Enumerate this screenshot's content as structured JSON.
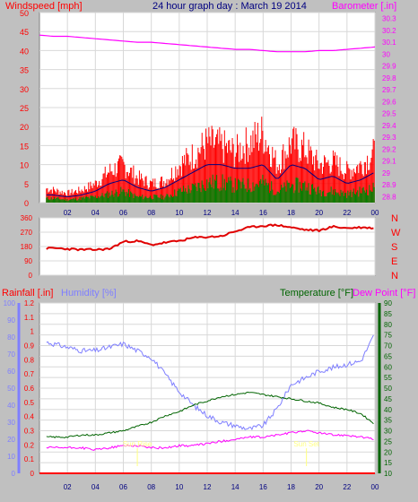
{
  "header": {
    "windspeed_label": "Windspeed [mph]",
    "title": "24 hour graph day : March 19 2014",
    "barometer_label": "Barometer [.in]"
  },
  "lower_header": {
    "rainfall_label": "Rainfall [.in]",
    "humidity_label": "Humidity [%]",
    "temperature_label": "Temperature [°F]",
    "dewpoint_label": "Dew Point [°F]"
  },
  "annotations": {
    "sunrise": "Sun Rise",
    "sunset": "Sun Set"
  },
  "colors": {
    "background": "#c0c0c0",
    "plot_bg": "#ffffff",
    "grid": "#d8d8d8",
    "wind": "#ff0000",
    "wind_avg": "#000080",
    "gust_fill": "#008000",
    "barometer": "#ff00ff",
    "direction": "#e00000",
    "humidity": "#7f7fff",
    "temperature": "#006400",
    "dewpoint": "#ff00ff",
    "rain": "#ff0000",
    "title": "#000080",
    "sun_marker": "#ffff80"
  },
  "chart_data": [
    {
      "type": "line",
      "name": "wind",
      "x_ticks": [
        "02",
        "04",
        "06",
        "08",
        "10",
        "12",
        "14",
        "16",
        "18",
        "20",
        "22",
        "00"
      ],
      "ylim_left": [
        0,
        50
      ],
      "left_ticks": [
        0,
        5,
        10,
        15,
        20,
        25,
        30,
        35,
        40,
        45,
        50
      ],
      "ylim_right": [
        28.75,
        30.35
      ],
      "right_ticks": [
        "28.8",
        "28.9",
        "29",
        "29.1",
        "29.2",
        "29.3",
        "29.4",
        "29.5",
        "29.6",
        "29.7",
        "29.8",
        "29.9",
        "30",
        "30.1",
        "30.2",
        "30.3"
      ],
      "hours": [
        0,
        1,
        2,
        3,
        4,
        5,
        6,
        7,
        8,
        9,
        10,
        11,
        12,
        13,
        14,
        15,
        16,
        17,
        18,
        19,
        20,
        21,
        22,
        23,
        24
      ],
      "gust_max": [
        5,
        4,
        3,
        4,
        6,
        10,
        12,
        8,
        6,
        7,
        12,
        15,
        19,
        18,
        16,
        19,
        22,
        12,
        19,
        17,
        12,
        13,
        10,
        12,
        16
      ],
      "wind_avg": [
        2,
        2,
        1.5,
        2,
        3,
        5,
        6,
        4,
        3,
        4,
        6,
        8,
        10,
        10,
        9,
        9,
        10,
        6,
        10,
        9,
        6,
        7,
        5,
        6,
        8
      ],
      "speed_max": [
        1.5,
        1.5,
        1,
        1.5,
        2,
        3,
        4,
        2,
        2,
        2,
        4,
        5,
        7,
        7,
        6,
        6,
        7,
        4,
        6,
        6,
        4,
        4,
        3,
        4,
        5
      ],
      "barometer": [
        30.16,
        30.15,
        30.15,
        30.14,
        30.13,
        30.12,
        30.11,
        30.1,
        30.1,
        30.09,
        30.08,
        30.07,
        30.06,
        30.05,
        30.04,
        30.04,
        30.03,
        30.02,
        30.02,
        30.02,
        30.03,
        30.03,
        30.04,
        30.05,
        30.06
      ]
    },
    {
      "type": "line",
      "name": "wind_direction",
      "left_ticks": [
        0,
        90,
        180,
        270,
        360
      ],
      "ylim": [
        0,
        360
      ],
      "compass_labels": [
        "N",
        "W",
        "S",
        "E",
        "N"
      ],
      "hours": [
        0,
        1,
        2,
        3,
        4,
        5,
        6,
        7,
        8,
        9,
        10,
        11,
        12,
        13,
        14,
        15,
        16,
        17,
        18,
        19,
        20,
        21,
        22,
        23,
        24
      ],
      "direction": [
        165,
        170,
        165,
        160,
        160,
        165,
        210,
        215,
        190,
        205,
        215,
        235,
        240,
        245,
        275,
        300,
        310,
        315,
        300,
        285,
        280,
        305,
        295,
        300,
        295
      ]
    },
    {
      "type": "line",
      "name": "temperature_humidity_rain",
      "humidity_ticks": [
        0,
        10,
        20,
        30,
        40,
        50,
        60,
        70,
        80,
        90,
        100
      ],
      "humidity_ylim": [
        0,
        100
      ],
      "rain_ticks": [
        "0",
        "0.1",
        "0.2",
        "0.3",
        "0.4",
        "0.5",
        "0.6",
        "0.7",
        "0.8",
        "0.9",
        "1",
        "1.1",
        "1.2"
      ],
      "rain_ylim": [
        0,
        1.2
      ],
      "temp_ticks": [
        10,
        15,
        20,
        25,
        30,
        35,
        40,
        45,
        50,
        55,
        60,
        65,
        70,
        75,
        80,
        85,
        90
      ],
      "temp_ylim": [
        10,
        90
      ],
      "hours": [
        0,
        1,
        2,
        3,
        4,
        5,
        6,
        7,
        8,
        9,
        10,
        11,
        12,
        13,
        14,
        15,
        16,
        17,
        18,
        19,
        20,
        21,
        22,
        23,
        24
      ],
      "humidity": [
        78,
        76,
        74,
        72,
        72,
        74,
        76,
        72,
        68,
        58,
        48,
        40,
        34,
        30,
        28,
        26,
        28,
        38,
        52,
        56,
        60,
        62,
        64,
        66,
        82
      ],
      "temperature": [
        27,
        27,
        27,
        28,
        28,
        29,
        30,
        32,
        34,
        37,
        39,
        42,
        44,
        46,
        47,
        48,
        47,
        46,
        45,
        44,
        43,
        41,
        40,
        38,
        33
      ],
      "dewpoint": [
        22,
        22,
        22,
        22,
        21,
        22,
        23,
        23,
        22,
        22,
        23,
        23,
        24,
        25,
        26,
        27,
        27,
        28,
        29,
        30,
        29,
        28,
        28,
        27,
        26
      ],
      "rainfall": [
        0,
        0,
        0,
        0,
        0,
        0,
        0,
        0,
        0,
        0,
        0,
        0,
        0,
        0,
        0,
        0,
        0,
        0,
        0,
        0,
        0,
        0,
        0,
        0,
        0
      ],
      "sunrise_hour": 7.0,
      "sunset_hour": 19.1
    }
  ]
}
